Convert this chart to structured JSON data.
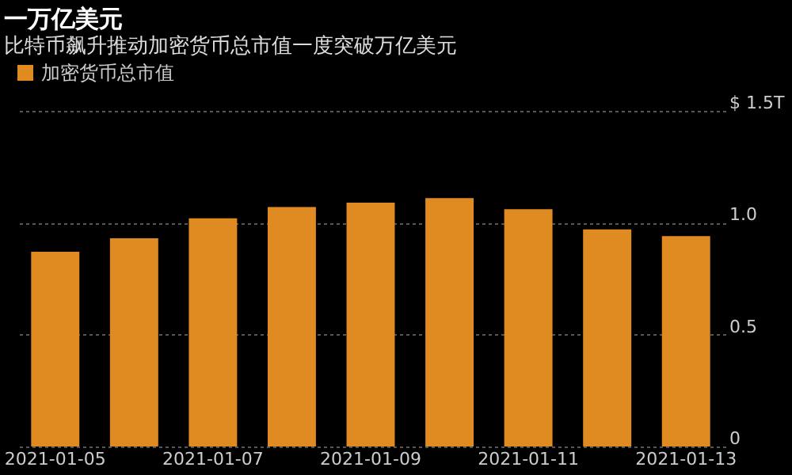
{
  "chart_data": {
    "type": "bar",
    "title": "一万亿美元",
    "subtitle": "比特币飙升推动加密货币总市值一度突破万亿美元",
    "categories": [
      "2021-01-05",
      null,
      "2021-01-07",
      null,
      "2021-01-09",
      null,
      "2021-01-11",
      null,
      "2021-01-13"
    ],
    "series": [
      {
        "name": "加密货币总市值",
        "color": "#e08a22",
        "values": [
          0.87,
          0.93,
          1.02,
          1.07,
          1.09,
          1.11,
          1.06,
          0.97,
          0.94
        ]
      }
    ],
    "ylim": [
      0,
      1.5
    ],
    "yticks": [
      0,
      0.5,
      {
        "value": 1.0,
        "label": "1.0"
      },
      {
        "value": 1.5,
        "label": "$ 1.5T"
      }
    ],
    "grid": "y",
    "legend": "top left"
  }
}
